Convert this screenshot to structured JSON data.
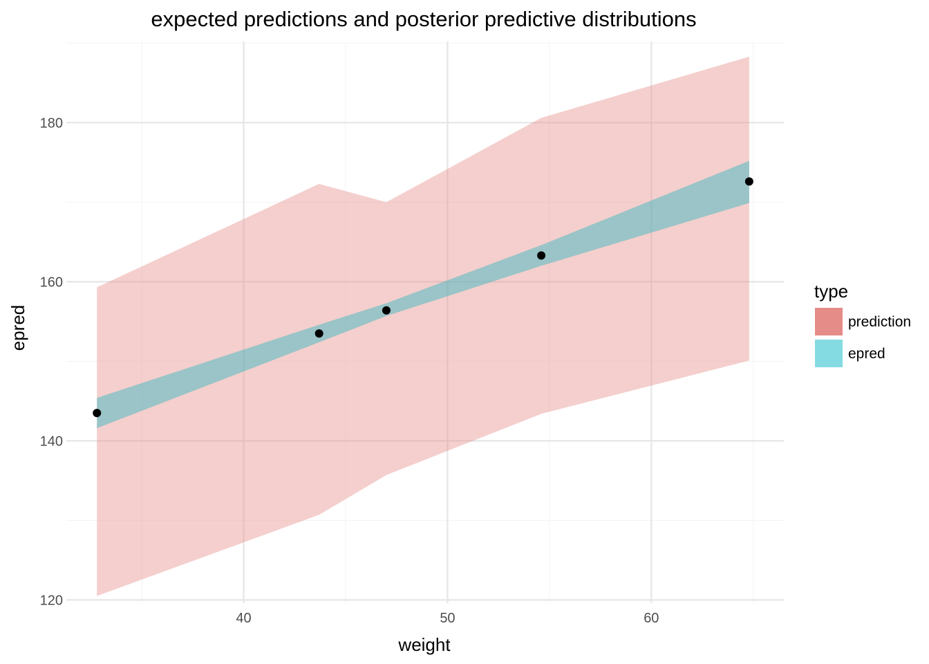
{
  "chart_data": {
    "type": "area",
    "title": "expected predictions and posterior predictive distributions",
    "xlabel": "weight",
    "ylabel": "epred",
    "xlim": [
      31.3,
      66.5
    ],
    "ylim": [
      119.6,
      190.2
    ],
    "x_ticks": [
      40,
      50,
      60
    ],
    "y_ticks": [
      120,
      140,
      160,
      180
    ],
    "grid": true,
    "legend": {
      "title": "type",
      "position": "right",
      "entries": [
        {
          "label": "prediction",
          "color": "#e58c88"
        },
        {
          "label": "epred",
          "color": "#84dbe1"
        }
      ]
    },
    "series": [
      {
        "name": "prediction",
        "kind": "ribbon",
        "color": "#e58c88",
        "opacity": 0.42,
        "x": [
          32.8,
          43.7,
          47.0,
          54.6,
          64.8
        ],
        "lower": [
          120.5,
          130.7,
          135.7,
          143.4,
          150.1
        ],
        "upper": [
          159.3,
          172.3,
          170.0,
          180.6,
          188.3
        ]
      },
      {
        "name": "epred",
        "kind": "ribbon",
        "color": "#3fbac2",
        "opacity": 0.5,
        "x": [
          32.8,
          43.7,
          47.0,
          54.6,
          64.8
        ],
        "lower": [
          141.6,
          152.4,
          155.7,
          162.0,
          169.9
        ],
        "upper": [
          145.4,
          154.6,
          157.3,
          164.6,
          175.2
        ]
      }
    ],
    "points": {
      "color": "#000000",
      "x": [
        32.8,
        43.7,
        47.0,
        54.6,
        64.8
      ],
      "y": [
        143.5,
        153.5,
        156.4,
        163.3,
        172.6
      ]
    }
  }
}
